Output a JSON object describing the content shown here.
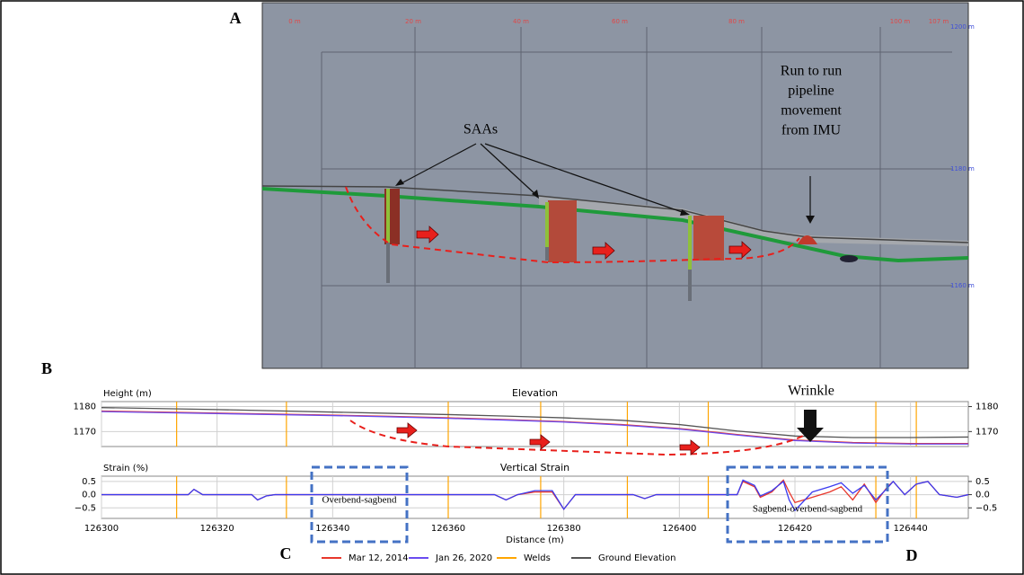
{
  "figure": {
    "panel_labels": [
      "A",
      "B",
      "C",
      "D"
    ],
    "scene": {
      "x_labels": [
        "0 m",
        "20 m",
        "40 m",
        "60 m",
        "80 m",
        "100 m",
        "107 m"
      ],
      "y_labels": [
        "1200 m",
        "1180 m",
        "1160 m"
      ],
      "saas": "SAAs",
      "imu": [
        "Run to run",
        "pipeline",
        "movement",
        "from IMU"
      ]
    },
    "wrinkle": "Wrinkle",
    "overbend": "Overbend-sagbend",
    "sagbend": "Sagbend-overbend-sagbend"
  },
  "chart_data": [
    {
      "type": "line",
      "title": "Elevation",
      "ylabel": "Height (m)",
      "xlim": [
        126300,
        126450
      ],
      "xticks": [
        126300,
        126320,
        126340,
        126360,
        126380,
        126400,
        126420,
        126440
      ],
      "ylim": [
        1164,
        1182
      ],
      "yticks": [
        1170,
        1180
      ],
      "y2lim": [
        1164,
        1182
      ],
      "y2ticks": [
        1170,
        1180
      ],
      "grid": true,
      "x": [
        126300,
        126310,
        126320,
        126330,
        126340,
        126350,
        126360,
        126370,
        126380,
        126390,
        126400,
        126410,
        126420,
        126430,
        126440,
        126450
      ],
      "series": [
        {
          "name": "Mar 12, 2014",
          "color": "#e8372c",
          "values": [
            1178.2,
            1177.8,
            1177.4,
            1177,
            1176.6,
            1176.1,
            1175.5,
            1174.8,
            1174,
            1172.8,
            1171.2,
            1168.8,
            1166.6,
            1165.6,
            1165.2,
            1165.2
          ]
        },
        {
          "name": "Jan 26, 2020",
          "color": "#6a4cf0",
          "values": [
            1178,
            1177.6,
            1177.2,
            1176.8,
            1176.4,
            1175.9,
            1175.3,
            1174.6,
            1173.8,
            1172.6,
            1171,
            1168.6,
            1166.4,
            1165.4,
            1165,
            1165
          ]
        },
        {
          "name": "Ground Elevation",
          "color": "#555555",
          "values": [
            1179.6,
            1179.2,
            1178.8,
            1178.3,
            1177.8,
            1177.3,
            1176.8,
            1176.2,
            1175.5,
            1174.5,
            1172.8,
            1170.2,
            1168.2,
            1167.6,
            1167.6,
            1167.8
          ]
        }
      ],
      "vlines": {
        "name": "Welds",
        "color": "#ffa500",
        "x": [
          126313,
          126332,
          126360,
          126376,
          126391,
          126405,
          126434,
          126441
        ]
      }
    },
    {
      "type": "line",
      "title": "Vertical Strain",
      "ylabel": "Strain (%)",
      "xlabel": "Distance (m)",
      "xlim": [
        126300,
        126450
      ],
      "xticks": [
        126300,
        126320,
        126340,
        126360,
        126380,
        126400,
        126420,
        126440
      ],
      "ylim": [
        -0.9,
        0.7
      ],
      "yticks": [
        {
          "value": -0.5,
          "label": "−0.5"
        },
        {
          "value": 0,
          "label": "0.0"
        },
        0.5
      ],
      "y2lim": [
        -0.9,
        0.7
      ],
      "y2ticks": [
        {
          "value": -0.5,
          "label": "−0.5"
        },
        {
          "value": 0,
          "label": "0.0"
        },
        0.5
      ],
      "grid": true,
      "x": [
        126300,
        126315,
        126316,
        126317.5,
        126326,
        126327,
        126328.5,
        126330,
        126360,
        126368,
        126370,
        126372,
        126375,
        126378,
        126380,
        126382,
        126392,
        126394,
        126396,
        126410,
        126411,
        126413,
        126414,
        126416,
        126418,
        126419,
        126420,
        126423,
        126426,
        126428,
        126430,
        126432,
        126434,
        126436,
        126437,
        126439,
        126441,
        126443,
        126445,
        126448,
        126450
      ],
      "series": [
        {
          "name": "Mar 12, 2014",
          "color": "#e8372c",
          "values": [
            0,
            0,
            0.2,
            0,
            0,
            -0.2,
            -0.05,
            0,
            0,
            0,
            -0.2,
            0,
            0.1,
            0.1,
            -0.55,
            0,
            0,
            -0.15,
            0,
            0,
            0.5,
            0.3,
            -0.1,
            0.1,
            0.55,
            0.1,
            -0.3,
            -0.1,
            0.1,
            0.3,
            -0.2,
            0.4,
            -0.3,
            0.3,
            0.5,
            0,
            0.4,
            0.5,
            0,
            -0.1,
            0
          ]
        },
        {
          "name": "Jan 26, 2020",
          "color": "#3b3bf0",
          "values": [
            0,
            0,
            0.2,
            0,
            0,
            -0.2,
            -0.05,
            0,
            0,
            0,
            -0.2,
            0,
            0.15,
            0.15,
            -0.55,
            0,
            0,
            -0.15,
            0,
            0,
            0.55,
            0.35,
            -0.05,
            0.15,
            0.5,
            -0.2,
            -0.6,
            0.1,
            0.3,
            0.45,
            0.05,
            0.35,
            -0.2,
            0.25,
            0.5,
            0,
            0.4,
            0.5,
            0,
            -0.1,
            0
          ]
        }
      ],
      "vlines": {
        "name": "Welds",
        "color": "#ffa500",
        "x": [
          126313,
          126332,
          126360,
          126376,
          126391,
          126405,
          126434,
          126441
        ]
      }
    }
  ]
}
